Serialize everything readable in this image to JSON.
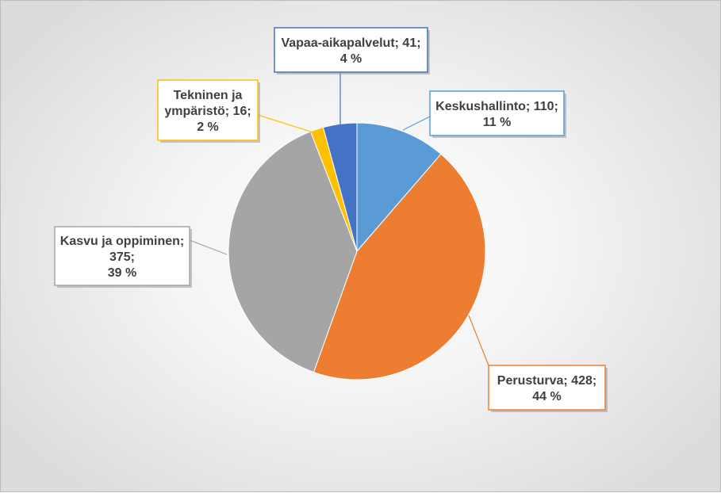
{
  "chart_data": {
    "type": "pie",
    "title": "",
    "slices": [
      {
        "category": "Keskushallinto",
        "value": 110,
        "percent": "11 %",
        "color": "#5b9bd5"
      },
      {
        "category": "Perusturva",
        "value": 428,
        "percent": "44 %",
        "color": "#ed7d31"
      },
      {
        "category": "Kasvu ja oppiminen",
        "value": 375,
        "percent": "39 %",
        "color": "#a5a5a5"
      },
      {
        "category": "Tekninen ja ympäristö",
        "value": 16,
        "percent": "2 %",
        "color": "#ffc000"
      },
      {
        "category": "Vapaa-aikapalvelut",
        "value": 41,
        "percent": "4 %",
        "color": "#4472c4"
      }
    ],
    "data_labels": [
      {
        "lines": [
          "Keskushallinto; 110;",
          "11 %"
        ]
      },
      {
        "lines": [
          "Perusturva; 428;",
          "44 %"
        ]
      },
      {
        "lines": [
          "Kasvu ja oppiminen;",
          "375;",
          "39 %"
        ]
      },
      {
        "lines": [
          "Tekninen ja",
          "ympäristö; 16;",
          "2 %"
        ]
      },
      {
        "lines": [
          "Vapaa-aikapalvelut; 41;",
          "4 %"
        ]
      }
    ],
    "legend": "none"
  }
}
